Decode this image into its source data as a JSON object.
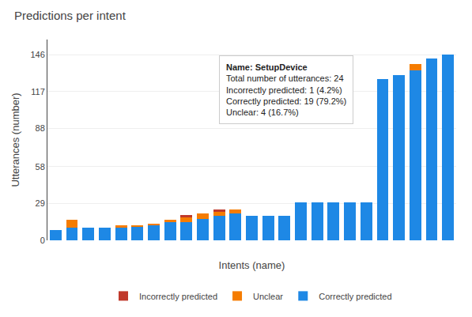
{
  "chart_data": {
    "type": "bar",
    "title": "Predictions per intent",
    "xlabel": "Intents (name)",
    "ylabel": "Utterances (number)",
    "categories": [
      null,
      null,
      null,
      null,
      null,
      null,
      null,
      null,
      null,
      null,
      null,
      null,
      null,
      null,
      null,
      null,
      null,
      null,
      null,
      null,
      null,
      null,
      null,
      null,
      null
    ],
    "series": [
      {
        "name": "Correctly predicted",
        "color": "#1e88e5",
        "values": [
          8,
          10,
          10,
          10,
          10,
          11,
          12,
          14,
          14,
          17,
          19,
          21,
          19,
          19,
          19,
          30,
          30,
          30,
          30,
          30,
          127,
          130,
          134,
          143,
          146
        ]
      },
      {
        "name": "Unclear",
        "color": "#f57c00",
        "values": [
          0,
          6,
          0,
          0,
          2,
          1,
          1,
          2,
          4,
          4,
          4,
          3,
          0,
          0,
          0,
          0,
          0,
          0,
          0,
          0,
          0,
          0,
          5,
          0,
          0
        ]
      },
      {
        "name": "Incorrectly predicted",
        "color": "#c0392b",
        "values": [
          0,
          0,
          0,
          0,
          0,
          0,
          0,
          0,
          2,
          0,
          1,
          0,
          0,
          0,
          0,
          0,
          0,
          0,
          0,
          0,
          0,
          0,
          0,
          0,
          0
        ]
      }
    ],
    "stacked": true,
    "ylim": [
      0,
      158
    ],
    "yticks": [
      0,
      29,
      58,
      88,
      117,
      146
    ],
    "grid": true,
    "legend": "bottom",
    "tick_labels": "y",
    "annotations": [
      "Name: SetupDevice",
      "Total number of utterances: 24",
      "Incorrectly predicted: 1 (4.2%)",
      "Correctly predicted: 19 (79.2%)",
      "Unclear: 4 (16.7%)"
    ]
  }
}
